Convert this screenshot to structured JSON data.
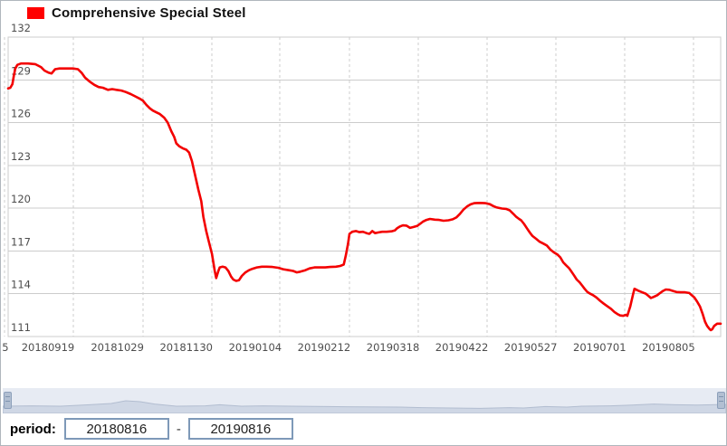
{
  "legend": {
    "label": "Comprehensive Special Steel",
    "swatch_color": "#ff0000"
  },
  "period": {
    "label": "period:",
    "separator": "-",
    "start_value": "20180816",
    "end_value": "20190816"
  },
  "chart_data": {
    "type": "line",
    "title": "Comprehensive Special Steel",
    "legend_position": "top-left",
    "grid": true,
    "line_color": "#f30000",
    "grid_color": "#cccccc",
    "label_color": "#4d4d4d",
    "y_axis": {
      "min": 111,
      "max": 132,
      "ticks": [
        132,
        129,
        126,
        123,
        120,
        117,
        114,
        111
      ]
    },
    "x_axis": {
      "start_date": "20180816",
      "end_date": "20190816",
      "ticks": [
        {
          "g": -0.005,
          "l": -0.004,
          "label": "5"
        },
        {
          "g": 0.0915,
          "l": 0.0559,
          "label": "20180919"
        },
        {
          "g": 0.1893,
          "l": 0.1533,
          "label": "20181029"
        },
        {
          "g": 0.2859,
          "l": 0.25,
          "label": "20181130"
        },
        {
          "g": 0.3812,
          "l": 0.3467,
          "label": "20190104"
        },
        {
          "g": 0.479,
          "l": 0.4434,
          "label": "20190212"
        },
        {
          "g": 0.5756,
          "l": 0.5401,
          "label": "20190318"
        },
        {
          "g": 0.6722,
          "l": 0.6367,
          "label": "20190422"
        },
        {
          "g": 0.7687,
          "l": 0.7334,
          "label": "20190527"
        },
        {
          "g": 0.8653,
          "l": 0.8301,
          "label": "20190701"
        },
        {
          "g": 0.9619,
          "l": 0.9268,
          "label": "20190805"
        }
      ]
    },
    "series": [
      {
        "name": "Comprehensive Special Steel",
        "x_as": "fraction of period 20180816..20190816",
        "points": [
          [
            0.0,
            128.4
          ],
          [
            0.003,
            128.45
          ],
          [
            0.006,
            128.7
          ],
          [
            0.008,
            129.3
          ],
          [
            0.01,
            129.8
          ],
          [
            0.013,
            130.05
          ],
          [
            0.018,
            130.15
          ],
          [
            0.028,
            130.15
          ],
          [
            0.038,
            130.1
          ],
          [
            0.046,
            129.9
          ],
          [
            0.051,
            129.65
          ],
          [
            0.057,
            129.5
          ],
          [
            0.061,
            129.45
          ],
          [
            0.066,
            129.75
          ],
          [
            0.072,
            129.8
          ],
          [
            0.081,
            129.8
          ],
          [
            0.091,
            129.8
          ],
          [
            0.098,
            129.75
          ],
          [
            0.103,
            129.5
          ],
          [
            0.108,
            129.15
          ],
          [
            0.114,
            128.9
          ],
          [
            0.121,
            128.65
          ],
          [
            0.127,
            128.5
          ],
          [
            0.133,
            128.45
          ],
          [
            0.14,
            128.3
          ],
          [
            0.146,
            128.35
          ],
          [
            0.152,
            128.3
          ],
          [
            0.159,
            128.25
          ],
          [
            0.165,
            128.15
          ],
          [
            0.172,
            128.0
          ],
          [
            0.178,
            127.85
          ],
          [
            0.184,
            127.7
          ],
          [
            0.189,
            127.55
          ],
          [
            0.194,
            127.25
          ],
          [
            0.199,
            127.0
          ],
          [
            0.203,
            126.85
          ],
          [
            0.208,
            126.72
          ],
          [
            0.213,
            126.6
          ],
          [
            0.219,
            126.35
          ],
          [
            0.224,
            126.0
          ],
          [
            0.229,
            125.4
          ],
          [
            0.233,
            125.0
          ],
          [
            0.236,
            124.55
          ],
          [
            0.24,
            124.35
          ],
          [
            0.245,
            124.2
          ],
          [
            0.25,
            124.1
          ],
          [
            0.254,
            123.9
          ],
          [
            0.258,
            123.3
          ],
          [
            0.262,
            122.4
          ],
          [
            0.267,
            121.3
          ],
          [
            0.271,
            120.5
          ],
          [
            0.274,
            119.4
          ],
          [
            0.278,
            118.4
          ],
          [
            0.282,
            117.6
          ],
          [
            0.286,
            116.8
          ],
          [
            0.29,
            115.6
          ],
          [
            0.292,
            115.1
          ],
          [
            0.295,
            115.6
          ],
          [
            0.297,
            115.85
          ],
          [
            0.301,
            115.9
          ],
          [
            0.305,
            115.85
          ],
          [
            0.309,
            115.6
          ],
          [
            0.313,
            115.2
          ],
          [
            0.316,
            115.0
          ],
          [
            0.32,
            114.9
          ],
          [
            0.324,
            114.95
          ],
          [
            0.328,
            115.25
          ],
          [
            0.333,
            115.5
          ],
          [
            0.338,
            115.65
          ],
          [
            0.343,
            115.75
          ],
          [
            0.349,
            115.85
          ],
          [
            0.356,
            115.9
          ],
          [
            0.363,
            115.9
          ],
          [
            0.371,
            115.88
          ],
          [
            0.379,
            115.82
          ],
          [
            0.386,
            115.72
          ],
          [
            0.394,
            115.65
          ],
          [
            0.4,
            115.6
          ],
          [
            0.405,
            115.5
          ],
          [
            0.41,
            115.55
          ],
          [
            0.417,
            115.65
          ],
          [
            0.423,
            115.78
          ],
          [
            0.43,
            115.85
          ],
          [
            0.437,
            115.85
          ],
          [
            0.445,
            115.85
          ],
          [
            0.452,
            115.88
          ],
          [
            0.46,
            115.9
          ],
          [
            0.466,
            115.95
          ],
          [
            0.471,
            116.05
          ],
          [
            0.474,
            116.7
          ],
          [
            0.477,
            117.5
          ],
          [
            0.479,
            118.2
          ],
          [
            0.483,
            118.35
          ],
          [
            0.488,
            118.4
          ],
          [
            0.493,
            118.32
          ],
          [
            0.498,
            118.35
          ],
          [
            0.503,
            118.25
          ],
          [
            0.507,
            118.2
          ],
          [
            0.511,
            118.4
          ],
          [
            0.515,
            118.25
          ],
          [
            0.52,
            118.3
          ],
          [
            0.525,
            118.35
          ],
          [
            0.531,
            118.35
          ],
          [
            0.538,
            118.38
          ],
          [
            0.543,
            118.45
          ],
          [
            0.546,
            118.6
          ],
          [
            0.55,
            118.72
          ],
          [
            0.554,
            118.8
          ],
          [
            0.559,
            118.78
          ],
          [
            0.564,
            118.62
          ],
          [
            0.569,
            118.68
          ],
          [
            0.574,
            118.75
          ],
          [
            0.578,
            118.9
          ],
          [
            0.582,
            119.05
          ],
          [
            0.587,
            119.18
          ],
          [
            0.592,
            119.25
          ],
          [
            0.599,
            119.2
          ],
          [
            0.605,
            119.18
          ],
          [
            0.611,
            119.12
          ],
          [
            0.618,
            119.15
          ],
          [
            0.624,
            119.22
          ],
          [
            0.629,
            119.35
          ],
          [
            0.634,
            119.6
          ],
          [
            0.639,
            119.9
          ],
          [
            0.644,
            120.12
          ],
          [
            0.649,
            120.27
          ],
          [
            0.654,
            120.35
          ],
          [
            0.662,
            120.37
          ],
          [
            0.67,
            120.35
          ],
          [
            0.676,
            120.28
          ],
          [
            0.681,
            120.15
          ],
          [
            0.686,
            120.05
          ],
          [
            0.693,
            119.98
          ],
          [
            0.699,
            119.95
          ],
          [
            0.704,
            119.85
          ],
          [
            0.709,
            119.6
          ],
          [
            0.713,
            119.4
          ],
          [
            0.717,
            119.25
          ],
          [
            0.72,
            119.15
          ],
          [
            0.724,
            118.9
          ],
          [
            0.728,
            118.6
          ],
          [
            0.732,
            118.3
          ],
          [
            0.736,
            118.05
          ],
          [
            0.741,
            117.85
          ],
          [
            0.746,
            117.65
          ],
          [
            0.751,
            117.52
          ],
          [
            0.756,
            117.38
          ],
          [
            0.761,
            117.1
          ],
          [
            0.766,
            116.9
          ],
          [
            0.771,
            116.75
          ],
          [
            0.775,
            116.55
          ],
          [
            0.779,
            116.2
          ],
          [
            0.783,
            116.0
          ],
          [
            0.787,
            115.8
          ],
          [
            0.79,
            115.6
          ],
          [
            0.794,
            115.3
          ],
          [
            0.798,
            115.0
          ],
          [
            0.802,
            114.8
          ],
          [
            0.806,
            114.55
          ],
          [
            0.809,
            114.35
          ],
          [
            0.813,
            114.12
          ],
          [
            0.817,
            114.0
          ],
          [
            0.821,
            113.9
          ],
          [
            0.826,
            113.72
          ],
          [
            0.831,
            113.5
          ],
          [
            0.836,
            113.3
          ],
          [
            0.841,
            113.12
          ],
          [
            0.846,
            112.95
          ],
          [
            0.851,
            112.72
          ],
          [
            0.855,
            112.58
          ],
          [
            0.859,
            112.48
          ],
          [
            0.863,
            112.45
          ],
          [
            0.867,
            112.52
          ],
          [
            0.869,
            112.45
          ],
          [
            0.873,
            113.1
          ],
          [
            0.877,
            113.95
          ],
          [
            0.879,
            114.35
          ],
          [
            0.884,
            114.22
          ],
          [
            0.889,
            114.12
          ],
          [
            0.895,
            114.0
          ],
          [
            0.898,
            113.88
          ],
          [
            0.902,
            113.7
          ],
          [
            0.906,
            113.78
          ],
          [
            0.911,
            113.9
          ],
          [
            0.915,
            114.05
          ],
          [
            0.919,
            114.2
          ],
          [
            0.923,
            114.3
          ],
          [
            0.928,
            114.28
          ],
          [
            0.933,
            114.2
          ],
          [
            0.938,
            114.12
          ],
          [
            0.944,
            114.1
          ],
          [
            0.95,
            114.1
          ],
          [
            0.956,
            114.05
          ],
          [
            0.959,
            113.92
          ],
          [
            0.963,
            113.75
          ],
          [
            0.967,
            113.45
          ],
          [
            0.971,
            113.1
          ],
          [
            0.975,
            112.55
          ],
          [
            0.978,
            112.05
          ],
          [
            0.981,
            111.75
          ],
          [
            0.984,
            111.55
          ],
          [
            0.986,
            111.45
          ],
          [
            0.988,
            111.5
          ],
          [
            0.991,
            111.75
          ],
          [
            0.995,
            111.9
          ],
          [
            1.0,
            111.9
          ]
        ]
      }
    ],
    "navigator": {
      "track_color": "#e7ebf3",
      "area_fill": "#cfd7e5",
      "area_line": "#b2bdd0",
      "silhouette": [
        [
          0.0,
          0.3
        ],
        [
          0.04,
          0.32
        ],
        [
          0.08,
          0.3
        ],
        [
          0.12,
          0.38
        ],
        [
          0.15,
          0.45
        ],
        [
          0.17,
          0.6
        ],
        [
          0.19,
          0.55
        ],
        [
          0.21,
          0.42
        ],
        [
          0.24,
          0.3
        ],
        [
          0.28,
          0.32
        ],
        [
          0.3,
          0.38
        ],
        [
          0.33,
          0.3
        ],
        [
          0.36,
          0.32
        ],
        [
          0.4,
          0.3
        ],
        [
          0.45,
          0.28
        ],
        [
          0.5,
          0.26
        ],
        [
          0.55,
          0.25
        ],
        [
          0.58,
          0.22
        ],
        [
          0.62,
          0.2
        ],
        [
          0.66,
          0.18
        ],
        [
          0.7,
          0.22
        ],
        [
          0.72,
          0.2
        ],
        [
          0.75,
          0.28
        ],
        [
          0.78,
          0.25
        ],
        [
          0.8,
          0.3
        ],
        [
          0.84,
          0.32
        ],
        [
          0.87,
          0.36
        ],
        [
          0.9,
          0.42
        ],
        [
          0.93,
          0.38
        ],
        [
          0.96,
          0.36
        ],
        [
          1.0,
          0.4
        ]
      ]
    }
  }
}
